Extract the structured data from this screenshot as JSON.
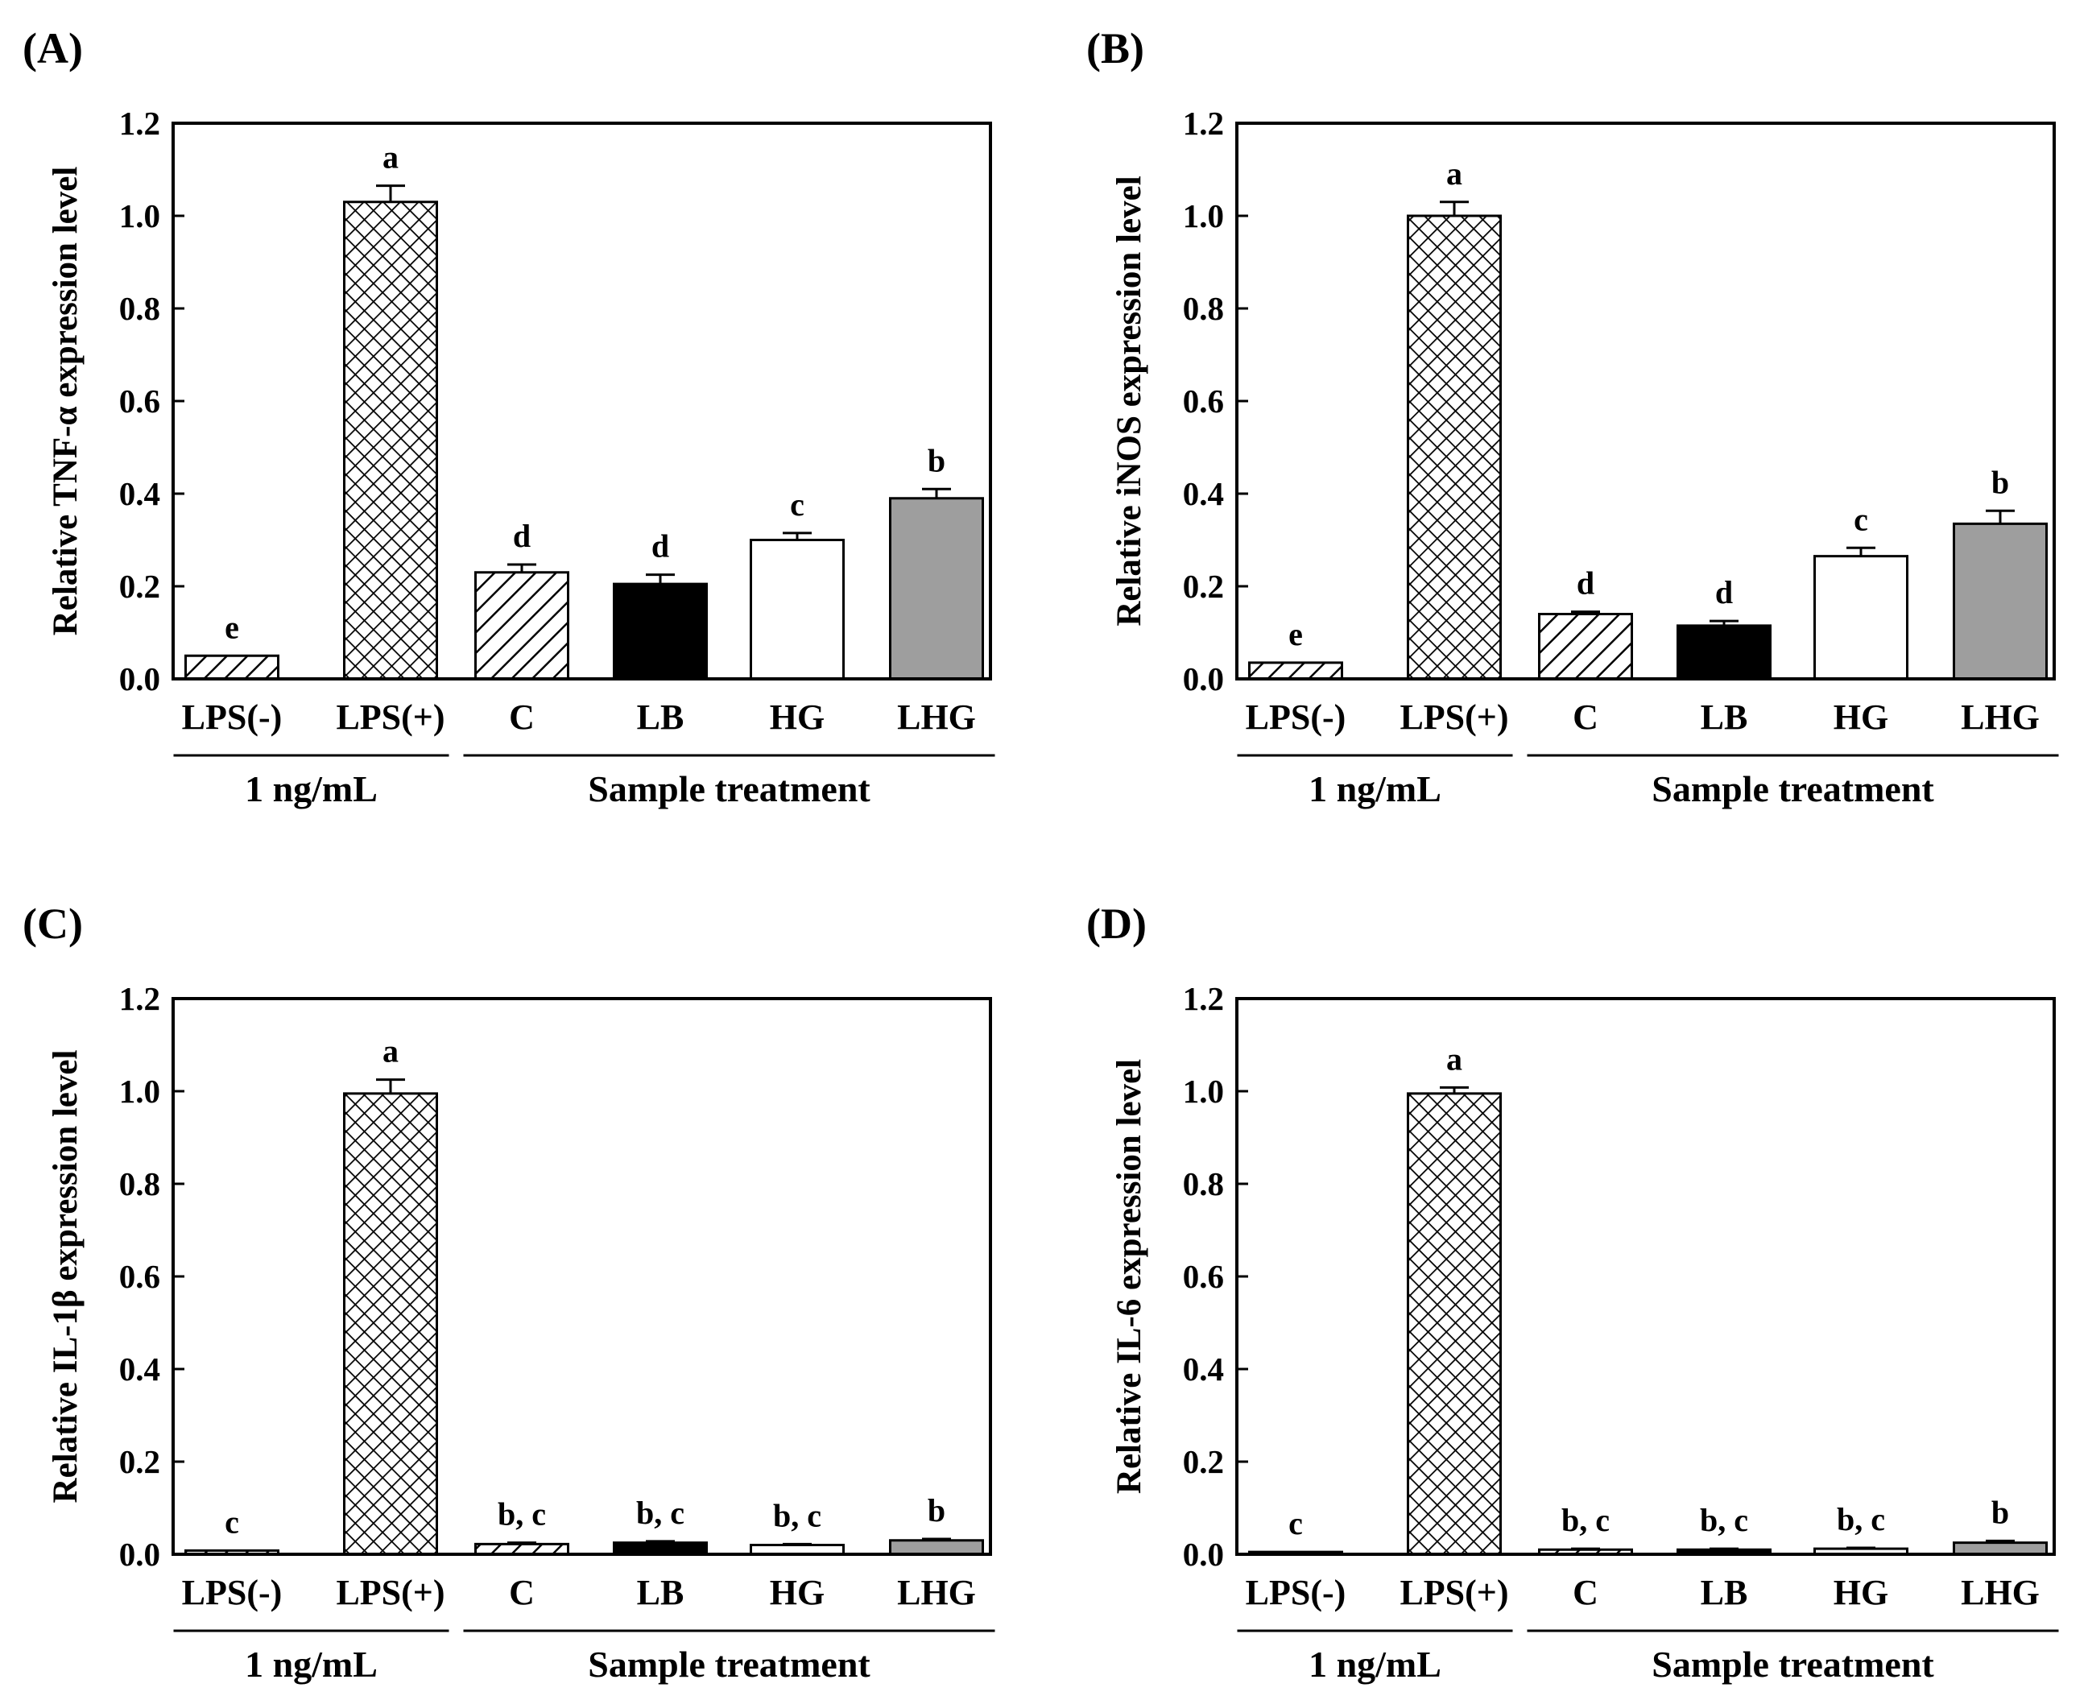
{
  "figure": {
    "panels": [
      "(A)",
      "(B)",
      "(C)",
      "(D)"
    ]
  },
  "chart_data": [
    {
      "type": "bar",
      "panel": "(A)",
      "title": "",
      "xlabel": "",
      "ylabel": "Relative TNF-α expression level",
      "ylim": [
        0,
        1.2
      ],
      "yticks": [
        "0.0",
        "0.2",
        "0.4",
        "0.6",
        "0.8",
        "1.0",
        "1.2"
      ],
      "categories": [
        "LPS(-)",
        "LPS(+)",
        "C",
        "LB",
        "HG",
        "LHG"
      ],
      "values": [
        0.05,
        1.03,
        0.23,
        0.205,
        0.3,
        0.39
      ],
      "errors": [
        0.0,
        0.035,
        0.017,
        0.02,
        0.015,
        0.02
      ],
      "significance": [
        "e",
        "a",
        "d",
        "d",
        "c",
        "b"
      ],
      "patterns": [
        "diagonal",
        "crosshatch",
        "diagonal",
        "black",
        "white",
        "gray"
      ],
      "groups": [
        {
          "label": "1 ng/mL",
          "from": 0,
          "to": 1
        },
        {
          "label": "Sample treatment",
          "from": 2,
          "to": 5
        }
      ]
    },
    {
      "type": "bar",
      "panel": "(B)",
      "title": "",
      "xlabel": "",
      "ylabel": "Relative iNOS expression level",
      "ylim": [
        0,
        1.2
      ],
      "yticks": [
        "0.0",
        "0.2",
        "0.4",
        "0.6",
        "0.8",
        "1.0",
        "1.2"
      ],
      "categories": [
        "LPS(-)",
        "LPS(+)",
        "C",
        "LB",
        "HG",
        "LHG"
      ],
      "values": [
        0.035,
        1.0,
        0.14,
        0.115,
        0.265,
        0.335
      ],
      "errors": [
        0.0,
        0.03,
        0.005,
        0.01,
        0.018,
        0.028
      ],
      "significance": [
        "e",
        "a",
        "d",
        "d",
        "c",
        "b"
      ],
      "patterns": [
        "diagonal",
        "crosshatch",
        "diagonal",
        "black",
        "white",
        "gray"
      ],
      "groups": [
        {
          "label": "1 ng/mL",
          "from": 0,
          "to": 1
        },
        {
          "label": "Sample treatment",
          "from": 2,
          "to": 5
        }
      ]
    },
    {
      "type": "bar",
      "panel": "(C)",
      "title": "",
      "xlabel": "",
      "ylabel": "Relative IL-1β expression level",
      "ylim": [
        0,
        1.2
      ],
      "yticks": [
        "0.0",
        "0.2",
        "0.4",
        "0.6",
        "0.8",
        "1.0",
        "1.2"
      ],
      "categories": [
        "LPS(-)",
        "LPS(+)",
        "C",
        "LB",
        "HG",
        "LHG"
      ],
      "values": [
        0.008,
        0.995,
        0.022,
        0.025,
        0.02,
        0.03
      ],
      "errors": [
        0.0,
        0.03,
        0.003,
        0.003,
        0.002,
        0.003
      ],
      "significance": [
        "c",
        "a",
        "b, c",
        "b, c",
        "b, c",
        "b"
      ],
      "patterns": [
        "diagonal",
        "crosshatch",
        "diagonal",
        "black",
        "white",
        "gray"
      ],
      "groups": [
        {
          "label": "1 ng/mL",
          "from": 0,
          "to": 1
        },
        {
          "label": "Sample treatment",
          "from": 2,
          "to": 5
        }
      ]
    },
    {
      "type": "bar",
      "panel": "(D)",
      "title": "",
      "xlabel": "",
      "ylabel": "Relative IL-6 expression level",
      "ylim": [
        0,
        1.2
      ],
      "yticks": [
        "0.0",
        "0.2",
        "0.4",
        "0.6",
        "0.8",
        "1.0",
        "1.2"
      ],
      "categories": [
        "LPS(-)",
        "LPS(+)",
        "C",
        "LB",
        "HG",
        "LHG"
      ],
      "values": [
        0.005,
        0.995,
        0.01,
        0.01,
        0.012,
        0.025
      ],
      "errors": [
        0.0,
        0.013,
        0.002,
        0.002,
        0.002,
        0.004
      ],
      "significance": [
        "c",
        "a",
        "b, c",
        "b, c",
        "b, c",
        "b"
      ],
      "patterns": [
        "diagonal",
        "crosshatch",
        "diagonal",
        "black",
        "white",
        "gray"
      ],
      "groups": [
        {
          "label": "1 ng/mL",
          "from": 0,
          "to": 1
        },
        {
          "label": "Sample treatment",
          "from": 2,
          "to": 5
        }
      ]
    }
  ]
}
